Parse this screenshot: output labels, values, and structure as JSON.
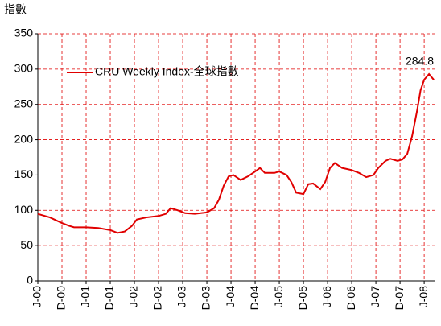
{
  "chart_data": {
    "type": "line",
    "y_label": "指數",
    "x": [
      0,
      0.5,
      1,
      1.3,
      1.5,
      2,
      2.5,
      3,
      3.3,
      3.6,
      3.9,
      4.1,
      4.5,
      5,
      5.3,
      5.5,
      5.8,
      6.1,
      6.5,
      7,
      7.3,
      7.5,
      7.7,
      7.9,
      8.1,
      8.4,
      8.7,
      9,
      9.2,
      9.4,
      9.8,
      10,
      10.3,
      10.5,
      10.7,
      11,
      11.2,
      11.4,
      11.7,
      11.9,
      12.1,
      12.3,
      12.6,
      13,
      13.3,
      13.6,
      13.9,
      14.1,
      14.4,
      14.6,
      14.9,
      15.1,
      15.3,
      15.5,
      15.7,
      15.85,
      16,
      16.2,
      16.4
    ],
    "series": [
      {
        "name": "CRU Weekly Index-全球指數",
        "color": "#e00000",
        "values": [
          95,
          90,
          82,
          78,
          76,
          76,
          75,
          72,
          68,
          70,
          78,
          87,
          90,
          92,
          95,
          103,
          100,
          96,
          95,
          97,
          103,
          115,
          135,
          148,
          150,
          143,
          148,
          155,
          160,
          153,
          153,
          155,
          150,
          140,
          125,
          123,
          137,
          138,
          130,
          140,
          160,
          167,
          160,
          157,
          153,
          147,
          150,
          160,
          170,
          173,
          170,
          172,
          180,
          205,
          240,
          270,
          285,
          293,
          284.8
        ]
      }
    ],
    "annotation": "284.8",
    "xlim": [
      0,
      16.43
    ],
    "xticks": [
      {
        "value": 0,
        "label": "J-00"
      },
      {
        "value": 1,
        "label": "D-00"
      },
      {
        "value": 2,
        "label": "J-01"
      },
      {
        "value": 3,
        "label": "D-01"
      },
      {
        "value": 4,
        "label": "J-02"
      },
      {
        "value": 5,
        "label": "D-02"
      },
      {
        "value": 6,
        "label": "J-03"
      },
      {
        "value": 7,
        "label": "D-03"
      },
      {
        "value": 8,
        "label": "J-04"
      },
      {
        "value": 9,
        "label": "D-04"
      },
      {
        "value": 10,
        "label": "J-05"
      },
      {
        "value": 11,
        "label": "D-05"
      },
      {
        "value": 12,
        "label": "J-06"
      },
      {
        "value": 13,
        "label": "D-06"
      },
      {
        "value": 14,
        "label": "J-07"
      },
      {
        "value": 15,
        "label": "D-07"
      },
      {
        "value": 16,
        "label": "J-08"
      }
    ],
    "ylim": [
      0,
      350
    ],
    "yticks": [
      0,
      50,
      100,
      150,
      200,
      250,
      300,
      350
    ],
    "grid": true
  }
}
